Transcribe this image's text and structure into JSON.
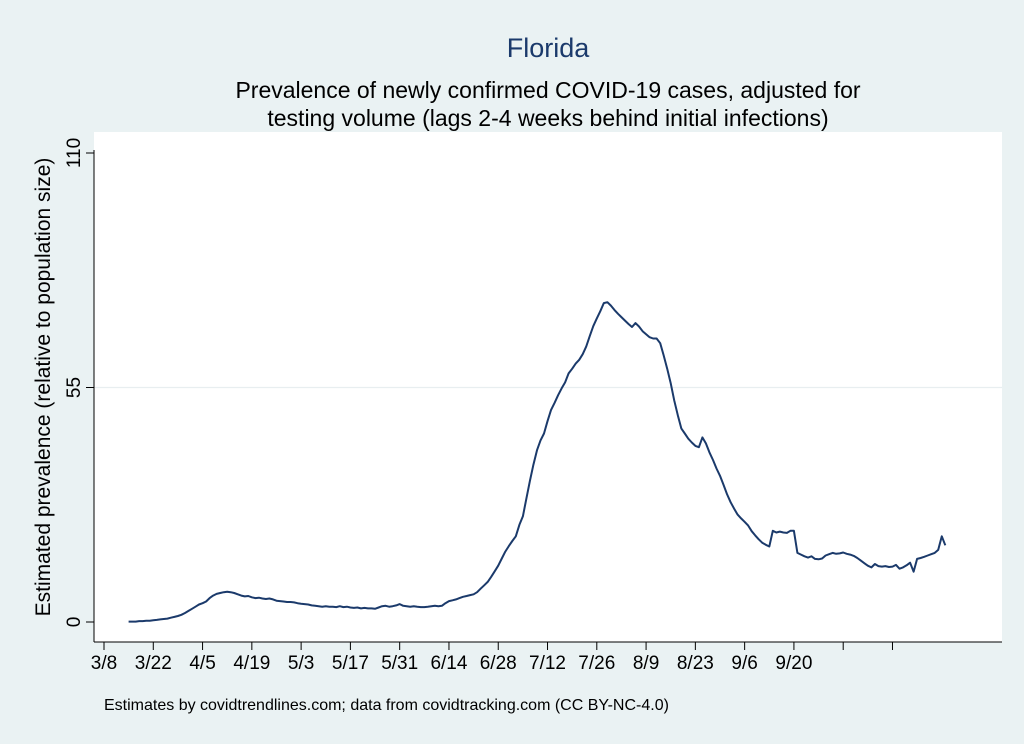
{
  "chart_data": {
    "type": "line",
    "title": "Florida",
    "subtitle_lines": [
      "Prevalence of newly confirmed COVID-19 cases, adjusted for",
      "testing volume (lags 2-4 weeks behind initial infections)"
    ],
    "xlabel": "",
    "ylabel": "Estimated prevalence (relative to population size)",
    "note": "Estimates by covidtrendlines.com; data from covidtracking.com (CC BY-NC-4.0)",
    "ylim": [
      0,
      110
    ],
    "yticks": [
      0,
      55,
      110
    ],
    "ytick_labels": [
      "0",
      "55",
      "110"
    ],
    "x_start_label": "3/8",
    "xtick_labels": [
      "3/8",
      "3/22",
      "4/5",
      "4/19",
      "5/3",
      "5/17",
      "5/31",
      "6/14",
      "6/28",
      "7/12",
      "7/26",
      "8/9",
      "8/23",
      "9/6",
      "9/20",
      "",
      ""
    ],
    "xtick_day_offsets": [
      0,
      14,
      28,
      42,
      56,
      70,
      84,
      98,
      112,
      126,
      140,
      154,
      168,
      182,
      196,
      210,
      224
    ],
    "xlim_days": [
      0,
      227
    ],
    "grid": "horizontal at 55",
    "series": [
      {
        "name": "Florida",
        "color": "#1b3a6b",
        "start_day_offset": 7,
        "values": [
          0.1,
          0.1,
          0.1,
          0.2,
          0.2,
          0.3,
          0.3,
          0.4,
          0.5,
          0.6,
          0.7,
          0.8,
          1.0,
          1.2,
          1.4,
          1.7,
          2.1,
          2.6,
          3.1,
          3.6,
          4.1,
          4.4,
          4.8,
          5.6,
          6.2,
          6.6,
          6.8,
          7.0,
          7.1,
          7.0,
          6.8,
          6.5,
          6.2,
          6.0,
          6.1,
          5.8,
          5.6,
          5.7,
          5.5,
          5.4,
          5.5,
          5.3,
          5.0,
          4.9,
          4.8,
          4.7,
          4.7,
          4.6,
          4.4,
          4.3,
          4.2,
          4.1,
          3.9,
          3.8,
          3.7,
          3.6,
          3.7,
          3.6,
          3.6,
          3.5,
          3.7,
          3.5,
          3.6,
          3.4,
          3.3,
          3.4,
          3.2,
          3.3,
          3.2,
          3.2,
          3.1,
          3.4,
          3.7,
          3.8,
          3.6,
          3.7,
          3.9,
          4.2,
          3.8,
          3.7,
          3.6,
          3.7,
          3.6,
          3.5,
          3.5,
          3.6,
          3.7,
          3.8,
          3.7,
          3.8,
          4.4,
          4.9,
          5.1,
          5.3,
          5.6,
          5.9,
          6.1,
          6.3,
          6.5,
          7.0,
          7.8,
          8.6,
          9.4,
          10.6,
          11.9,
          13.2,
          14.9,
          16.5,
          17.8,
          19.0,
          20.1,
          22.8,
          24.8,
          29.0,
          33.1,
          36.9,
          40.3,
          42.6,
          44.2,
          47.1,
          49.7,
          51.4,
          53.2,
          54.8,
          56.2,
          58.3,
          59.4,
          60.6,
          61.5,
          62.8,
          64.6,
          67.1,
          69.4,
          71.2,
          72.9,
          74.8,
          75.0,
          74.2,
          73.2,
          72.3,
          71.5,
          70.7,
          69.9,
          69.2,
          70.1,
          69.3,
          68.2,
          67.5,
          66.8,
          66.5,
          66.5,
          65.4,
          62.5,
          59.4,
          56.0,
          52.0,
          48.5,
          45.4,
          44.2,
          43.0,
          42.1,
          41.3,
          41.0,
          43.3,
          41.9,
          39.8,
          38.0,
          36.0,
          34.3,
          32.2,
          30.0,
          28.1,
          26.6,
          25.2,
          24.3,
          23.5,
          22.6,
          21.3,
          20.3,
          19.4,
          18.6,
          18.1,
          17.7,
          21.4,
          21.0,
          21.2,
          21.0,
          20.9,
          21.4,
          21.4,
          16.2,
          15.8,
          15.4,
          15.1,
          15.4,
          14.8,
          14.7,
          14.9,
          15.6,
          15.9,
          16.2,
          16.0,
          16.1,
          16.3,
          16.0,
          15.8,
          15.5,
          15.0,
          14.4,
          13.8,
          13.2,
          12.8,
          13.6,
          13.1,
          13.0,
          13.1,
          12.9,
          13.0,
          13.4,
          12.5,
          12.8,
          13.3,
          13.9,
          11.8,
          14.8,
          15.0,
          15.3,
          15.6,
          15.9,
          16.2,
          16.9,
          20.1,
          18.0
        ]
      }
    ]
  }
}
